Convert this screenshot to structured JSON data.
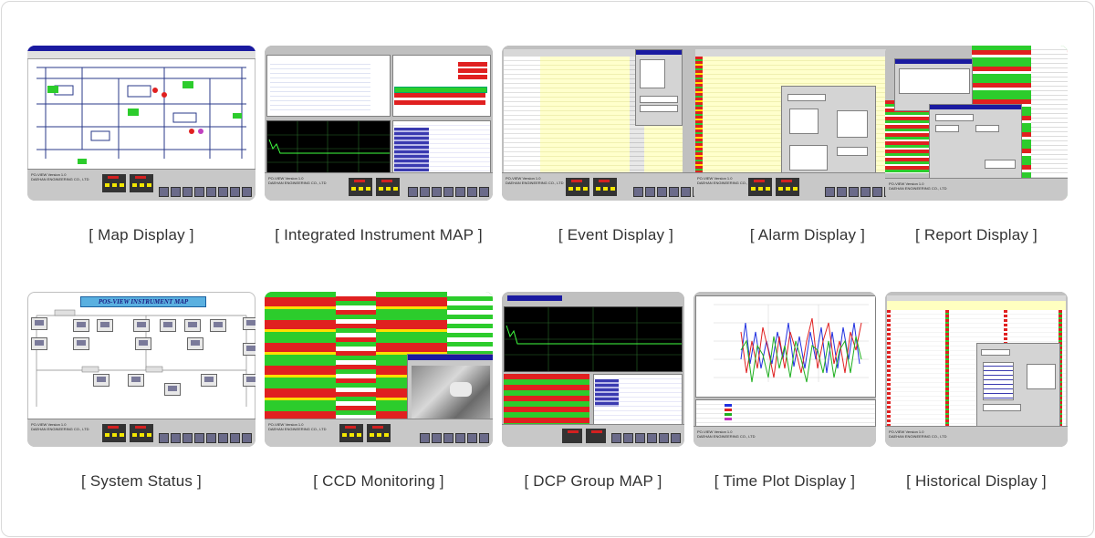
{
  "cards": [
    {
      "caption": "[ Map Display ]",
      "icon": "map-display-screenshot"
    },
    {
      "caption": "[ Integrated Instrument MAP ]",
      "icon": "instrument-map-screenshot"
    },
    {
      "caption": "[ Event Display ]",
      "icon": "event-display-screenshot"
    },
    {
      "caption": "[ Alarm Display ]",
      "icon": "alarm-display-screenshot"
    },
    {
      "caption": "[ Report Display ]",
      "icon": "report-display-screenshot"
    },
    {
      "caption": "[ System Status ]",
      "icon": "system-status-screenshot"
    },
    {
      "caption": "[ CCD Monitoring ]",
      "icon": "ccd-monitoring-screenshot"
    },
    {
      "caption": "[ DCP Group MAP ]",
      "icon": "dcp-group-map-screenshot"
    },
    {
      "caption": "[ Time Plot Display ]",
      "icon": "time-plot-screenshot"
    },
    {
      "caption": "[ Historical Display ]",
      "icon": "historical-display-screenshot"
    }
  ],
  "system_status": {
    "banner": "POS-VIEW INSTRUMENT MAP"
  },
  "colors": {
    "green": "#2ccc2c",
    "red": "#e02020",
    "yellow": "#ffffc0",
    "grey": "#c0c0c0",
    "plot_blue": "#2030e0",
    "plot_red": "#e02020",
    "plot_green": "#20b020"
  }
}
